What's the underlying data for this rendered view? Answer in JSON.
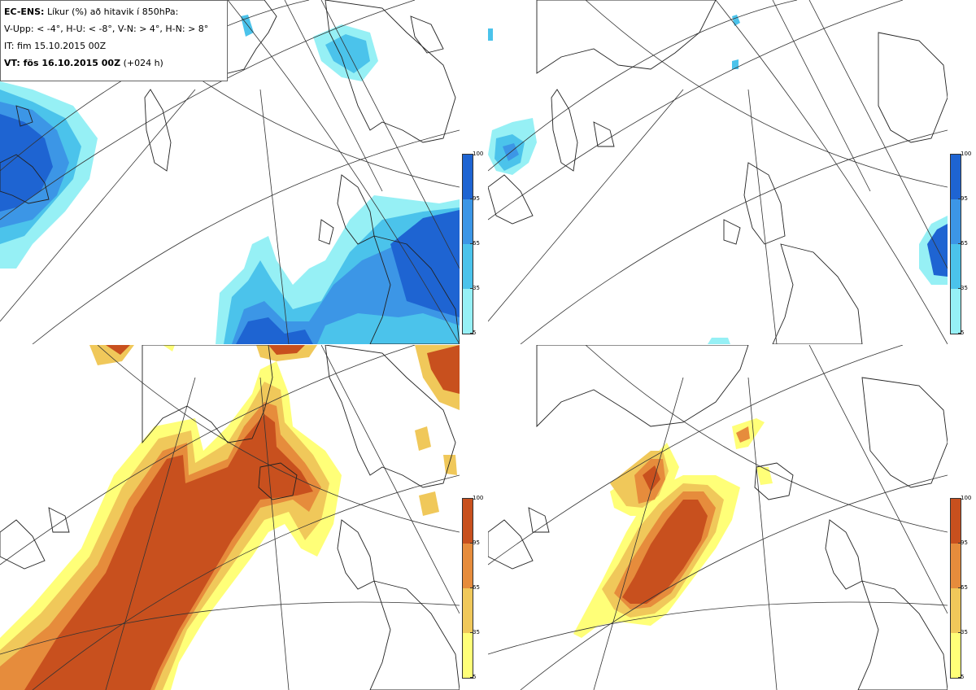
{
  "legend": {
    "product": "EC-ENS:",
    "product_desc": "Líkur (%) að hitavik í 850hPa:",
    "thresholds": "V-Upp: < -4°, H-U: < -8°, V-N: > 4°, H-N: > 8°",
    "init_time": "IT: fim 15.10.2015 00Z",
    "valid_prefix": "VT: fös 16.10.2015 00Z",
    "valid_suffix": "(+024 h)"
  },
  "colorbars": {
    "ticks": [
      "100",
      "95",
      "65",
      "35",
      "5"
    ],
    "cold_colors": [
      "#1e64d2",
      "#3c96e6",
      "#4bc3eb",
      "#96f0f5"
    ],
    "warm_colors": [
      "#c8501e",
      "#e68c3c",
      "#f0c85a",
      "#ffff78"
    ]
  },
  "panels": [
    {
      "name": "panel-cold-4",
      "scheme": "cold"
    },
    {
      "name": "panel-cold-8",
      "scheme": "cold"
    },
    {
      "name": "panel-warm-4",
      "scheme": "warm"
    },
    {
      "name": "panel-warm-8",
      "scheme": "warm"
    }
  ]
}
